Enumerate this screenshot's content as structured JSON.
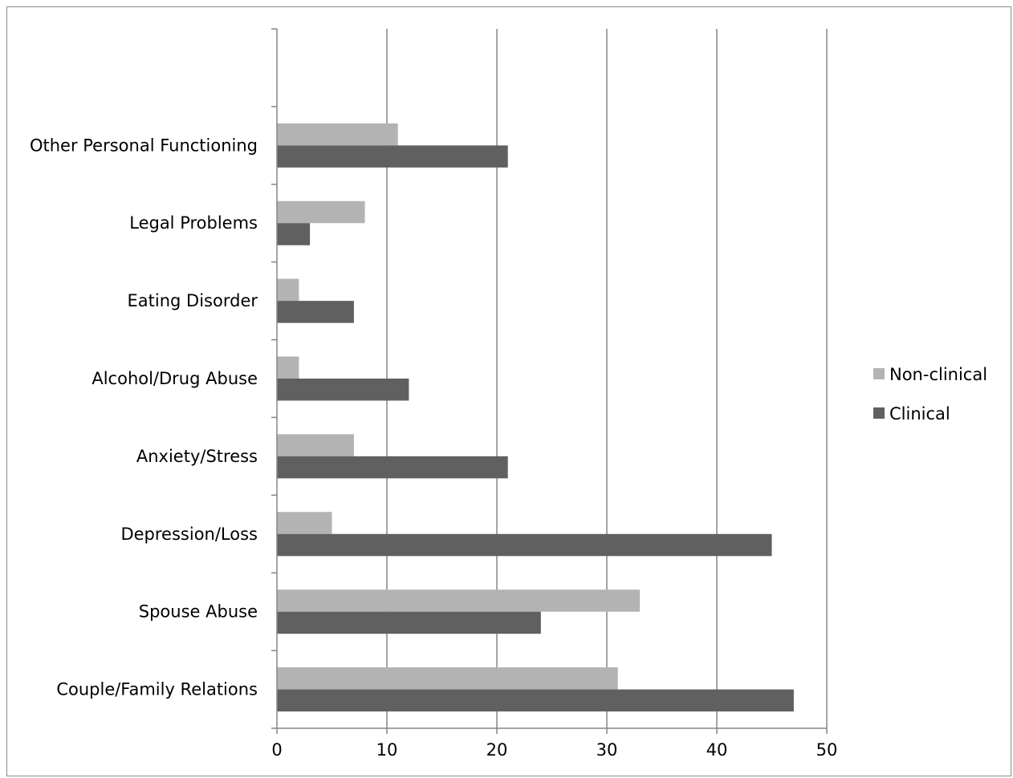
{
  "chart_data": {
    "type": "bar",
    "orientation": "horizontal",
    "categories": [
      "Couple/Family Relations",
      "Spouse Abuse",
      "Depression/Loss",
      "Anxiety/Stress",
      "Alcohol/Drug Abuse",
      "Eating Disorder",
      "Legal Problems",
      "Other Personal Functioning"
    ],
    "empty_slots_at_top": 1,
    "series": [
      {
        "name": "Non-clinical",
        "color": "#b3b3b3",
        "values": [
          31,
          33,
          5,
          7,
          2,
          2,
          8,
          11
        ]
      },
      {
        "name": "Clinical",
        "color": "#606060",
        "values": [
          47,
          24,
          45,
          21,
          12,
          7,
          3,
          21
        ]
      }
    ],
    "xlim": [
      0,
      50
    ],
    "xticks": [
      "0",
      "10",
      "20",
      "30",
      "40",
      "50"
    ],
    "title": "",
    "xlabel": "",
    "ylabel": "",
    "grid": "vertical",
    "legend_position": "right"
  }
}
